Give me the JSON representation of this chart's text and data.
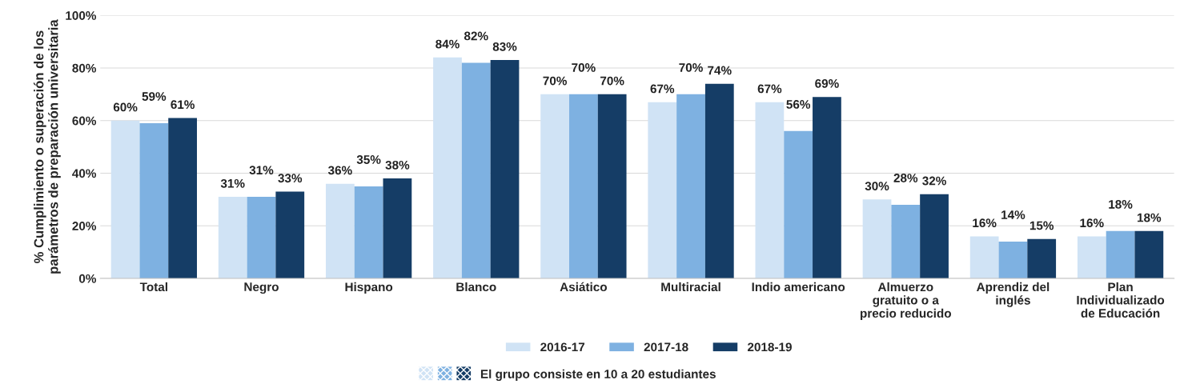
{
  "chart_data": {
    "type": "bar",
    "ylabel": "% Cumplimiento o superación de los\nparámetros de preparación universitaria",
    "categories": [
      "Total",
      "Negro",
      "Hispano",
      "Blanco",
      "Asiático",
      "Multiracial",
      "Indio americano",
      "Almuerzo\ngratuito o a\nprecio reducido",
      "Aprendiz del\ninglés",
      "Plan\nIndividualizado\nde Educación"
    ],
    "series": [
      {
        "name": "2016-17",
        "color": "#d0e3f5",
        "values": [
          60,
          31,
          36,
          84,
          70,
          67,
          67,
          30,
          16,
          16
        ],
        "value_labels": [
          "60%",
          "31%",
          "36%",
          "84%",
          "70%",
          "67%",
          "67%",
          "30%",
          "16%",
          "16%"
        ]
      },
      {
        "name": "2017-18",
        "color": "#7eb1e1",
        "values": [
          59,
          31,
          35,
          82,
          70,
          70,
          56,
          28,
          14,
          18
        ],
        "value_labels": [
          "59%",
          "31%",
          "35%",
          "82%",
          "70%",
          "70%",
          "56%",
          "28%",
          "14%",
          "18%"
        ]
      },
      {
        "name": "2018-19",
        "color": "#153d66",
        "values": [
          61,
          33,
          38,
          83,
          70,
          74,
          69,
          32,
          15,
          18
        ],
        "value_labels": [
          "61%",
          "33%",
          "38%",
          "83%",
          "70%",
          "74%",
          "69%",
          "32%",
          "15%",
          "18%"
        ]
      }
    ],
    "ylim": [
      0,
      100
    ],
    "yticks": [
      {
        "value": 0,
        "label": "0%"
      },
      {
        "value": 20,
        "label": "20%"
      },
      {
        "value": 40,
        "label": "40%"
      },
      {
        "value": 60,
        "label": "60%"
      },
      {
        "value": 80,
        "label": "80%"
      },
      {
        "value": 100,
        "label": "100%"
      }
    ],
    "grid": "y",
    "legend": "bottom",
    "annotations": [
      "El grupo consiste en 10 a 20 estudiantes"
    ]
  }
}
